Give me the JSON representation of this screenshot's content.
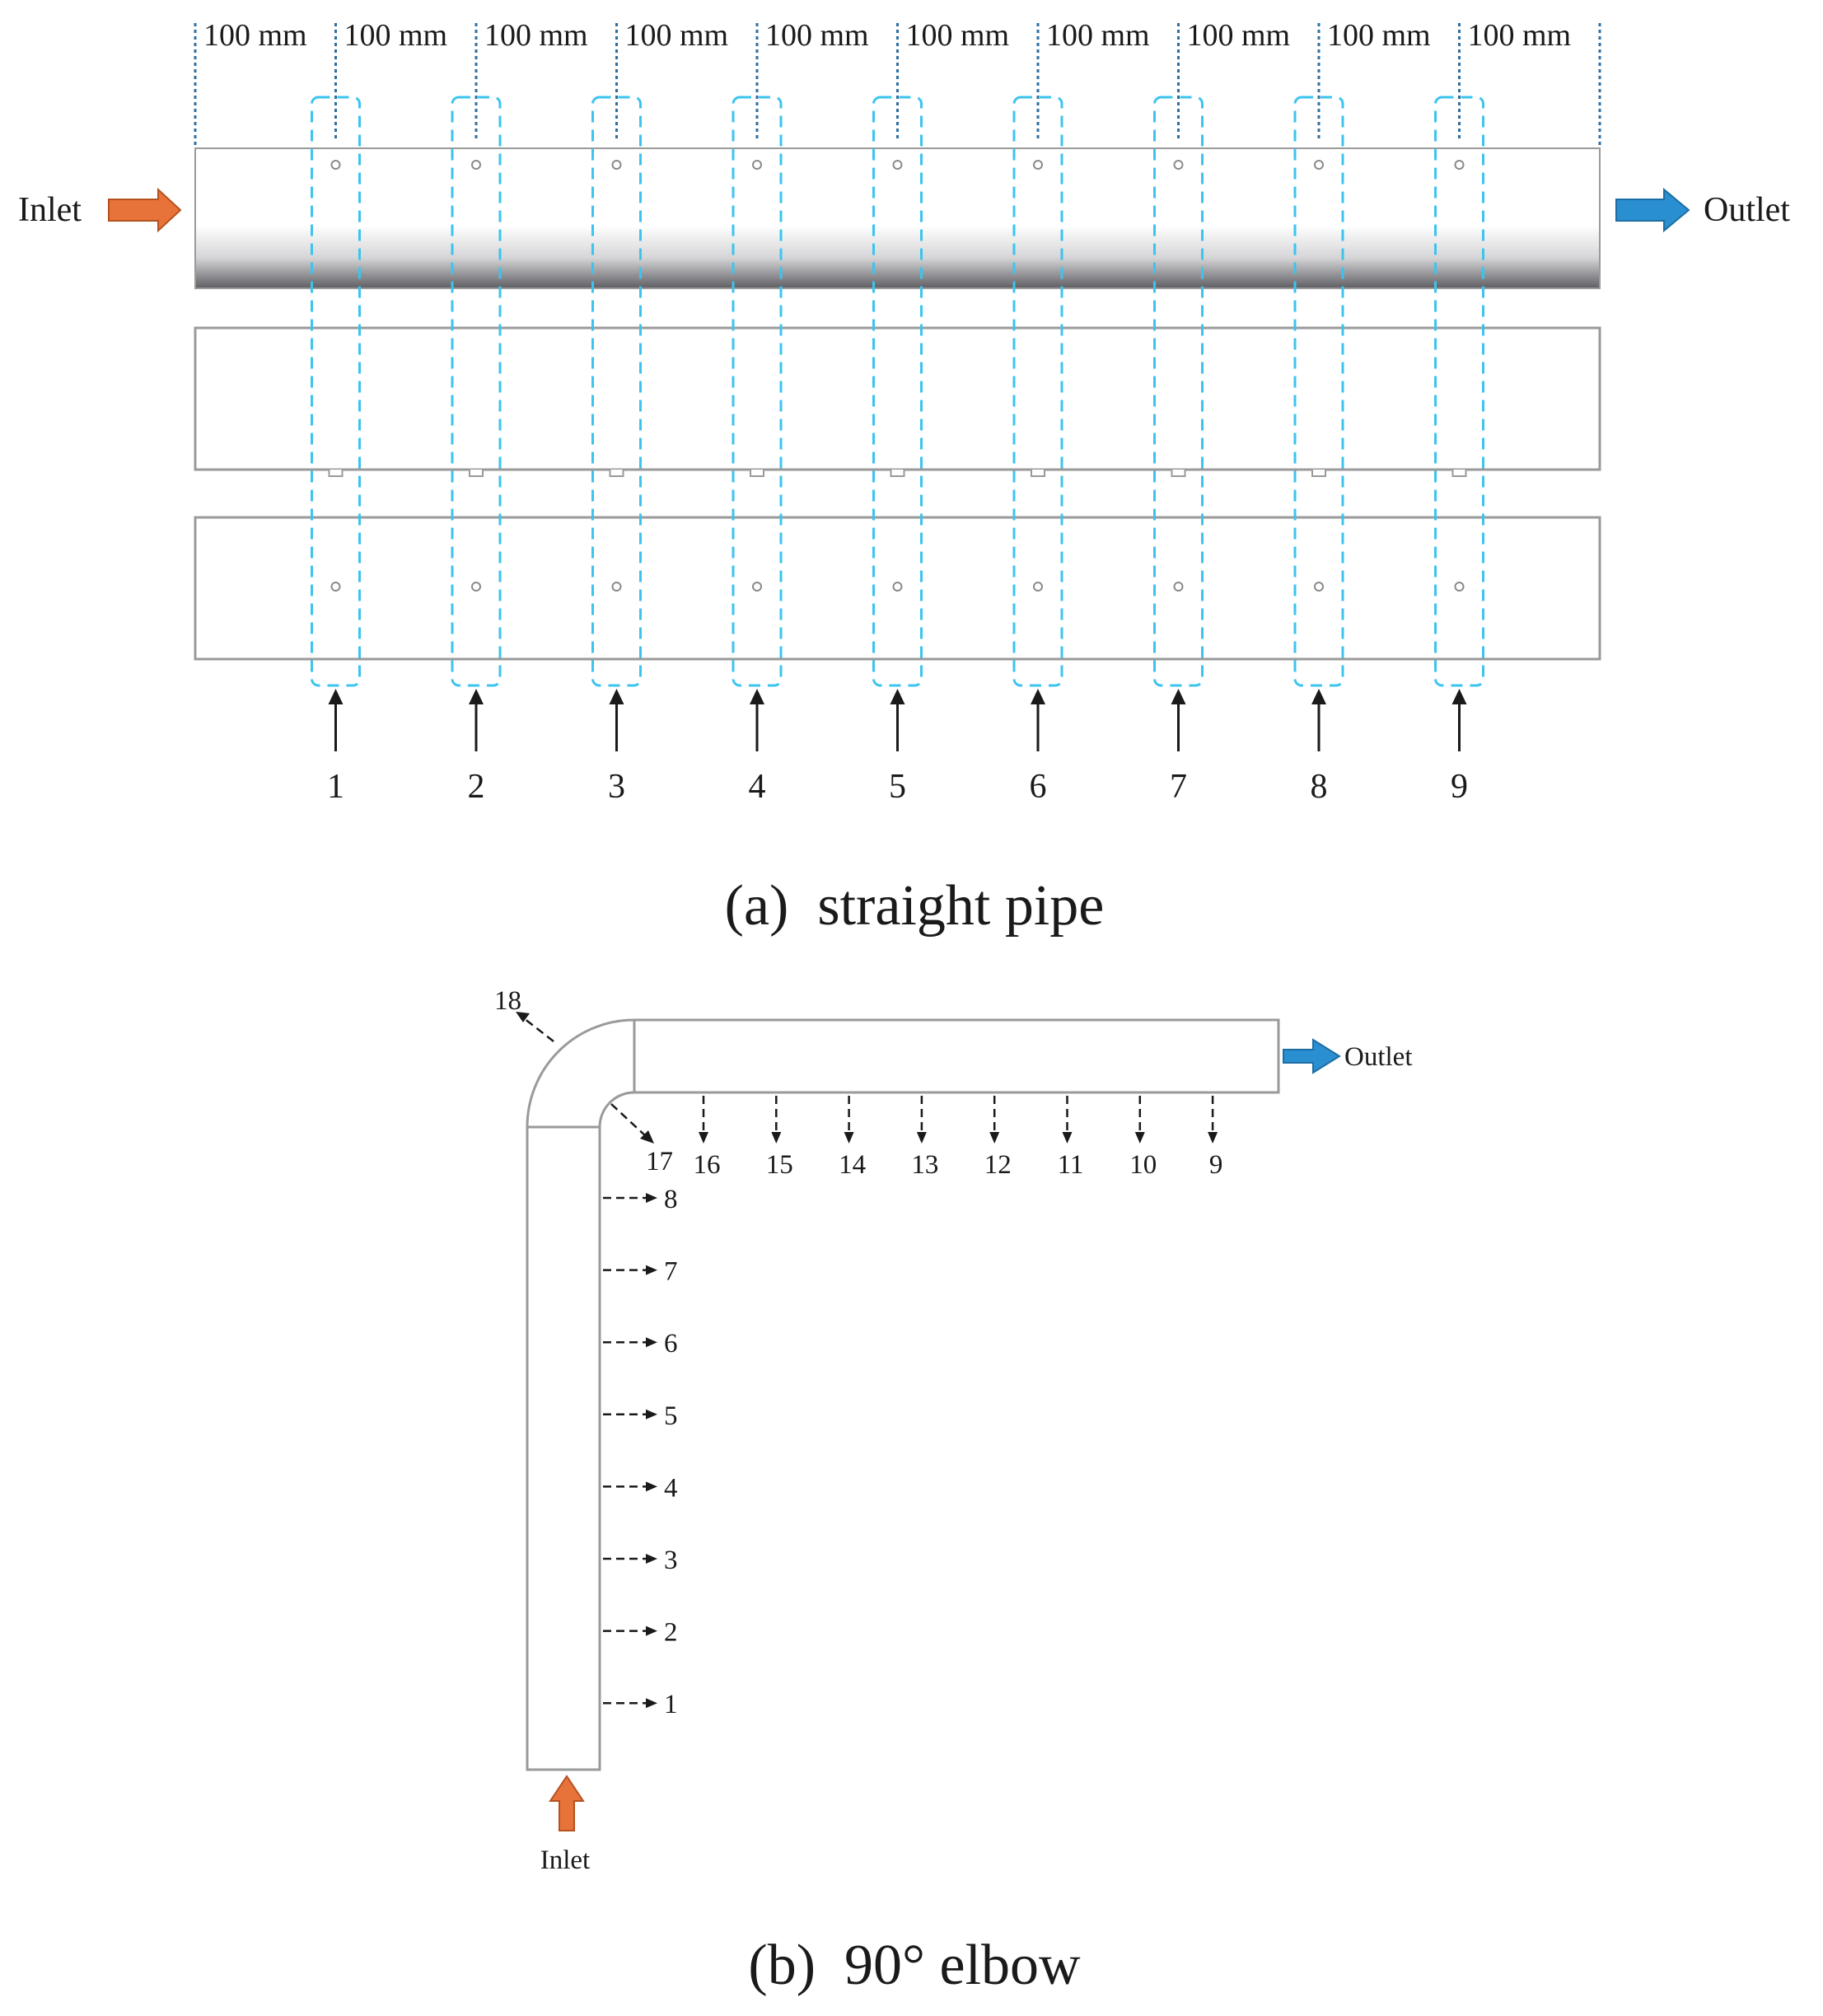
{
  "figure_a": {
    "caption": "(a)  straight pipe",
    "spacing_label": "100 mm",
    "spacing_count": 10,
    "inlet_label": "Inlet",
    "outlet_label": "Outlet",
    "positions": [
      "1",
      "2",
      "3",
      "4",
      "5",
      "6",
      "7",
      "8",
      "9"
    ]
  },
  "figure_b": {
    "caption": "(b)  90° elbow",
    "inlet_label": "Inlet",
    "outlet_label": "Outlet",
    "vertical_positions": [
      "1",
      "2",
      "3",
      "4",
      "5",
      "6",
      "7",
      "8"
    ],
    "horizontal_positions": [
      "16",
      "15",
      "14",
      "13",
      "12",
      "11",
      "10",
      "9"
    ],
    "bend_inner_label": "17",
    "bend_outer_label": "18"
  },
  "colors": {
    "inlet_arrow": "#e8733a",
    "outlet_arrow": "#2a8fd0",
    "probe_box": "#3cc4ee",
    "dim_line": "#2f6fa0",
    "pipe_outline": "#9a9a9a"
  }
}
